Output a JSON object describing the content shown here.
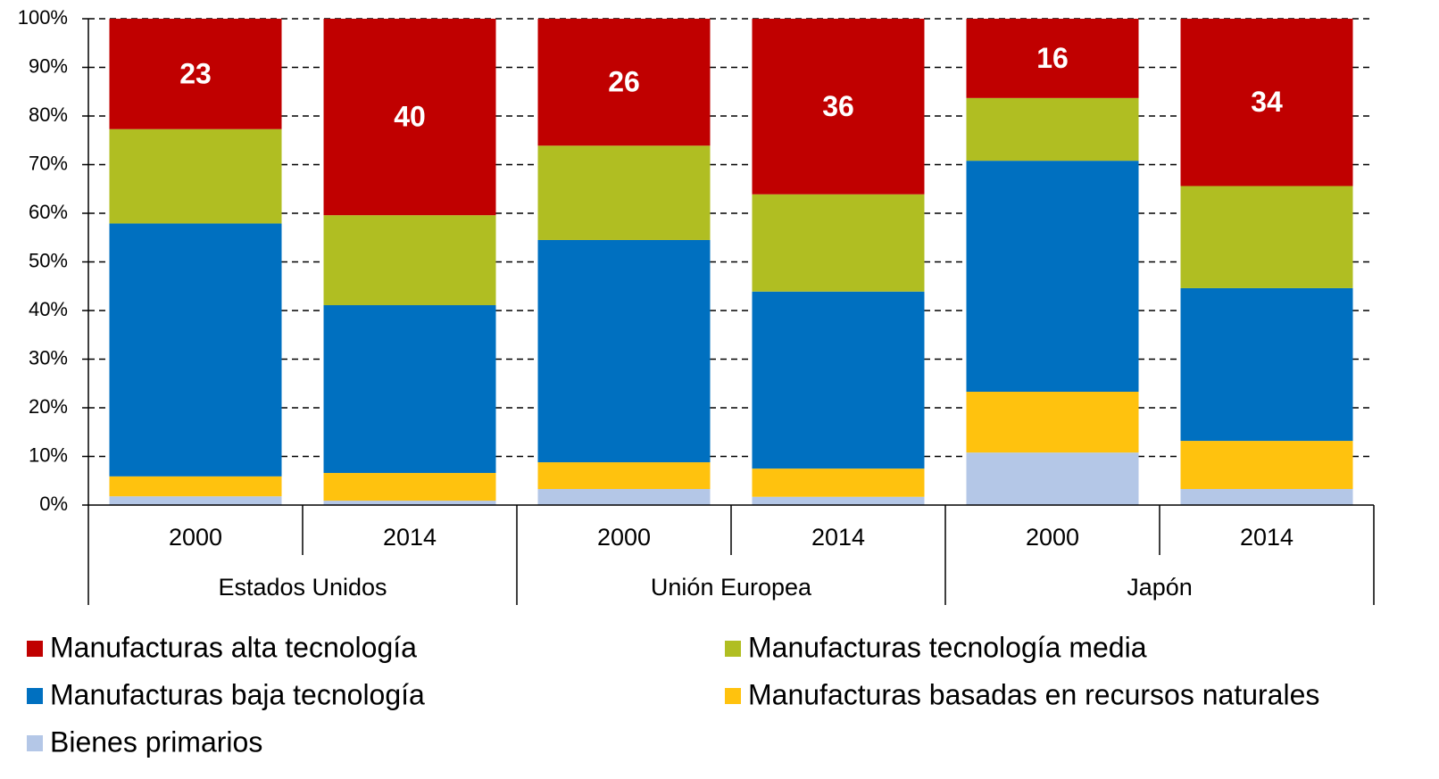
{
  "chart_data": {
    "type": "stacked_bar",
    "categories": [
      "2000",
      "2014",
      "2000",
      "2014",
      "2000",
      "2014"
    ],
    "groups": [
      "Estados Unidos",
      "Unión Europea",
      "Japón"
    ],
    "series": [
      {
        "name": "Bienes primarios",
        "color": "#b4c7e7",
        "values": [
          1.8,
          0.9,
          3.3,
          1.7,
          10.8,
          3.3
        ]
      },
      {
        "name": "Manufacturas basadas en recursos naturales",
        "color": "#ffc20e",
        "values": [
          4.1,
          5.7,
          5.5,
          5.8,
          12.5,
          9.9
        ]
      },
      {
        "name": "Manufacturas baja tecnología",
        "color": "#0070c0",
        "values": [
          52.0,
          34.5,
          45.7,
          36.4,
          47.5,
          31.4
        ]
      },
      {
        "name": "Manufacturas tecnología media",
        "color": "#b0be22",
        "values": [
          19.4,
          18.5,
          19.4,
          20.0,
          12.9,
          21.0
        ]
      },
      {
        "name": "Manufacturas alta tecnología",
        "color": "#c00000",
        "values": [
          22.7,
          40.4,
          26.1,
          36.1,
          16.3,
          34.4
        ],
        "value_labels": [
          "23",
          "40",
          "26",
          "36",
          "16",
          "34"
        ]
      }
    ],
    "ylim": [
      0,
      100
    ],
    "yticks": [
      {
        "value": 0,
        "label": "0%"
      },
      {
        "value": 10,
        "label": "10%"
      },
      {
        "value": 20,
        "label": "20%"
      },
      {
        "value": 30,
        "label": "30%"
      },
      {
        "value": 40,
        "label": "40%"
      },
      {
        "value": 50,
        "label": "50%"
      },
      {
        "value": 60,
        "label": "60%"
      },
      {
        "value": 70,
        "label": "70%"
      },
      {
        "value": 80,
        "label": "80%"
      },
      {
        "value": 90,
        "label": "90%"
      },
      {
        "value": 100,
        "label": "100%"
      }
    ],
    "grid": true,
    "legend": "bottom"
  }
}
